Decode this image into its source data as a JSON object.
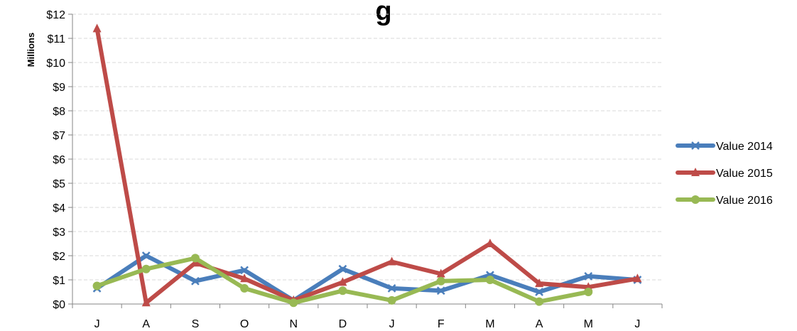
{
  "chart_data": {
    "type": "line",
    "title": "g",
    "ylabel": "Millions",
    "categories": [
      "J",
      "A",
      "S",
      "O",
      "N",
      "D",
      "J",
      "F",
      "M",
      "A",
      "M",
      "J"
    ],
    "yticks": [
      "$0",
      "$1",
      "$2",
      "$3",
      "$4",
      "$5",
      "$6",
      "$7",
      "$8",
      "$9",
      "$10",
      "$11",
      "$12"
    ],
    "ylim": [
      0,
      12
    ],
    "grid": true,
    "legend": "right",
    "series": [
      {
        "name": "Value 2014",
        "color": "#4a7ebb",
        "marker": "x",
        "values": [
          0.65,
          2.0,
          0.95,
          1.4,
          0.15,
          1.45,
          0.65,
          0.55,
          1.2,
          0.5,
          1.15,
          1.0
        ]
      },
      {
        "name": "Value 2015",
        "color": "#be4b48",
        "marker": "triangle",
        "values": [
          11.4,
          0.05,
          1.7,
          1.05,
          0.15,
          0.9,
          1.75,
          1.25,
          2.5,
          0.85,
          0.7,
          1.05
        ]
      },
      {
        "name": "Value 2016",
        "color": "#98b954",
        "marker": "circle",
        "values": [
          0.75,
          1.45,
          1.9,
          0.65,
          0.05,
          0.55,
          0.15,
          0.95,
          1.0,
          0.1,
          0.5,
          null
        ]
      }
    ]
  }
}
